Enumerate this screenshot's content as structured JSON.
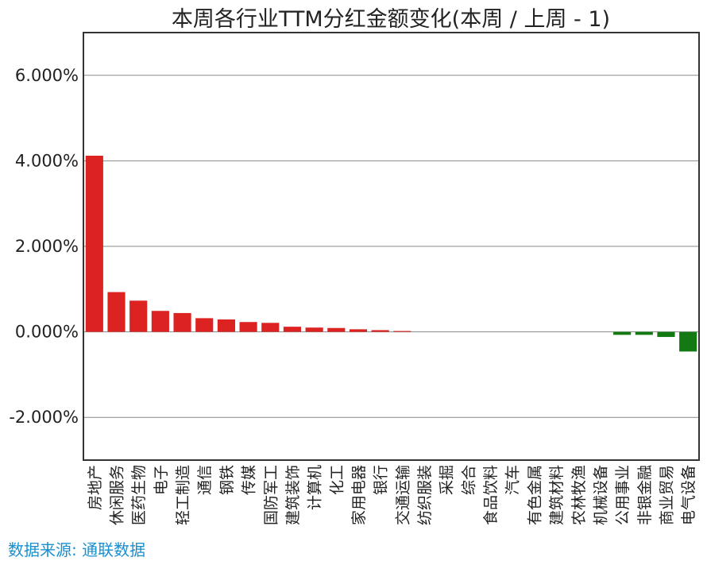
{
  "chart_data": {
    "type": "bar",
    "title": "本周各行业TTM分红金额变化(本周 / 上周 - 1)",
    "xlabel": "",
    "ylabel": "",
    "ylim": [
      -3.0,
      7.0
    ],
    "yticks": [
      -2.0,
      0.0,
      2.0,
      4.0,
      6.0
    ],
    "ytick_labels": [
      "-2.000%",
      "0.000%",
      "2.000%",
      "4.000%",
      "6.000%"
    ],
    "value_unit": "%",
    "grid": true,
    "colors": {
      "positive": "#dd2222",
      "negative": "#137a13",
      "grid": "#888888",
      "axis": "#333333"
    },
    "categories": [
      "房地产",
      "休闲服务",
      "医药生物",
      "电子",
      "轻工制造",
      "通信",
      "钢铁",
      "传媒",
      "国防军工",
      "建筑装饰",
      "计算机",
      "化工",
      "家用电器",
      "银行",
      "交通运输",
      "纺织服装",
      "采掘",
      "综合",
      "食品饮料",
      "汽车",
      "有色金属",
      "建筑材料",
      "农林牧渔",
      "机械设备",
      "公用事业",
      "非银金融",
      "商业贸易",
      "电气设备"
    ],
    "values": [
      4.12,
      0.93,
      0.73,
      0.49,
      0.44,
      0.32,
      0.29,
      0.23,
      0.21,
      0.12,
      0.1,
      0.09,
      0.06,
      0.04,
      0.02,
      0.0,
      0.0,
      0.0,
      0.0,
      0.0,
      0.0,
      0.0,
      0.0,
      0.0,
      -0.07,
      -0.07,
      -0.12,
      -0.46
    ]
  },
  "source": "数据来源: 通联数据"
}
